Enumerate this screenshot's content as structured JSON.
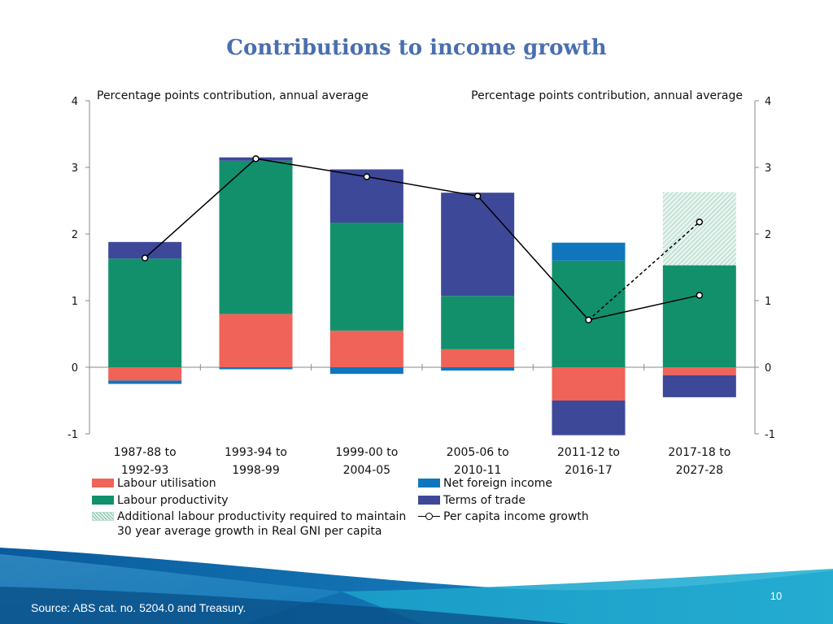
{
  "slide": {
    "title": "Contributions to income growth",
    "source": "Source: ABS cat. no. 5204.0 and Treasury.",
    "page_number": "10"
  },
  "colors": {
    "labour_utilisation": "#ef6358",
    "labour_productivity": "#12906c",
    "net_foreign_income": "#0f76be",
    "terms_of_trade": "#3e4899",
    "additional": "#e6f3ee",
    "title": "#4a6fb0"
  },
  "chart_data": {
    "type": "bar",
    "stacked": true,
    "title": "Contributions to income growth",
    "ylabel_left": "Percentage points contribution, annual average",
    "ylabel_right": "Percentage points contribution, annual average",
    "ylim": [
      -1,
      4
    ],
    "yticks": [
      "-1",
      "0",
      "1",
      "2",
      "3",
      "4"
    ],
    "categories": [
      [
        "1987-88 to",
        "1992-93"
      ],
      [
        "1993-94 to",
        "1998-99"
      ],
      [
        "1999-00 to",
        "2004-05"
      ],
      [
        "2005-06 to",
        "2010-11"
      ],
      [
        "2011-12 to",
        "2016-17"
      ],
      [
        "2017-18 to",
        "2027-28"
      ]
    ],
    "series": [
      {
        "name": "Labour utilisation",
        "color_key": "labour_utilisation",
        "values": [
          -0.2,
          0.8,
          0.55,
          0.27,
          -0.5,
          -0.12
        ]
      },
      {
        "name": "Labour productivity",
        "color_key": "labour_productivity",
        "values": [
          1.63,
          2.3,
          1.62,
          0.8,
          1.6,
          1.53
        ]
      },
      {
        "name": "Net foreign income",
        "color_key": "net_foreign_income",
        "values": [
          -0.05,
          -0.03,
          -0.1,
          -0.05,
          0.27,
          0
        ]
      },
      {
        "name": "Terms of trade",
        "color_key": "terms_of_trade",
        "values": [
          0.25,
          0.05,
          0.8,
          1.55,
          -0.52,
          -0.33
        ]
      },
      {
        "name": "Additional labour productivity required to maintain 30 year average growth in Real GNI per capita",
        "color_key": "additional",
        "values": [
          0,
          0,
          0,
          0,
          0,
          1.1
        ]
      }
    ],
    "line": {
      "name": "Per capita income growth",
      "values": [
        1.64,
        3.13,
        2.86,
        2.57,
        0.71,
        1.08
      ],
      "dashed_extension": {
        "from_index": 4,
        "to_index": 5,
        "value": 2.18
      }
    },
    "legend": {
      "left": [
        "Labour utilisation",
        "Labour productivity",
        "Additional labour productivity required to maintain",
        "30 year average growth in Real GNI per capita"
      ],
      "right": [
        "Net foreign income",
        "Terms of trade",
        "Per capita income growth"
      ]
    },
    "grid": false
  }
}
